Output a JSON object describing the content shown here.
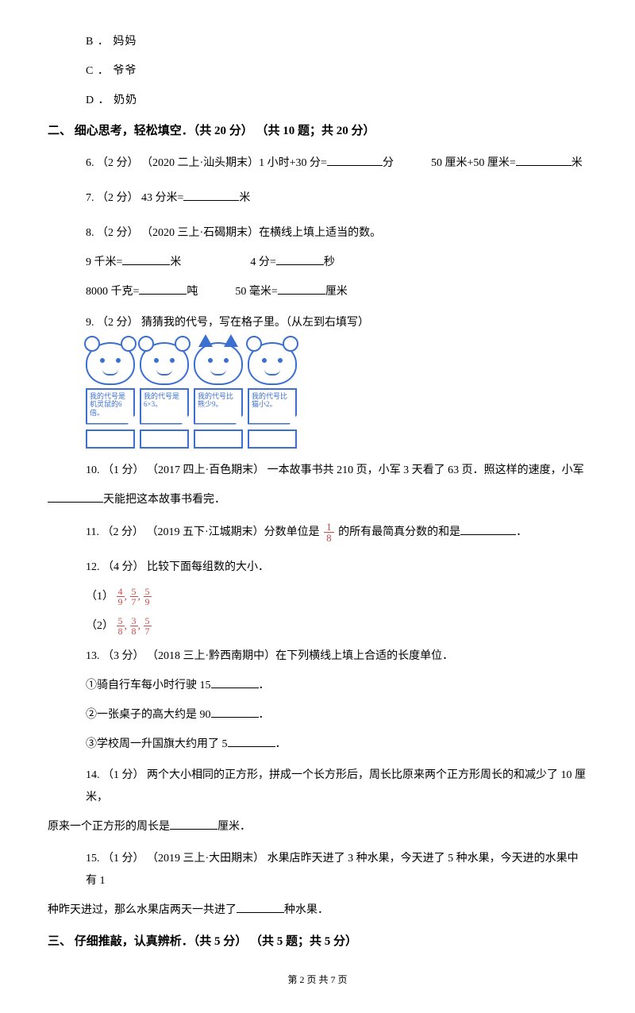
{
  "options": {
    "b": "B ． 妈妈",
    "c": "C ． 爷爷",
    "d": "D ． 奶奶"
  },
  "section2": {
    "heading": "二、 细心思考，轻松填空．（共 20 分） （共 10 题；共 20 分）"
  },
  "q6": {
    "prefix": "6. （2 分） （2020 二上·汕头期末）1 小时+30 分=",
    "unit1": "分",
    "mid": "50 厘米+50 厘米=",
    "unit2": "米"
  },
  "q7": {
    "prefix": "7. （2 分） 43 分米=",
    "unit": "米"
  },
  "q8": {
    "prefix": "8. （2 分） （2020 三上·石碣期末）在横线上填上适当的数。",
    "r1a": "9 千米=",
    "r1a_u": "米",
    "r1b": "4 分=",
    "r1b_u": "秒",
    "r2a": "8000 千克=",
    "r2a_u": "吨",
    "r2b": "50 毫米=",
    "r2b_u": "厘米"
  },
  "q9": {
    "prefix": "9. （2 分） 猜猜我的代号，写在格子里。（从左到右填写）",
    "cards": [
      "我的代号是机灵鼠的6倍。",
      "我的代号是6×3。",
      "我的代号比熊少9。",
      "我的代号比猫小2。"
    ]
  },
  "q10": {
    "line1": "10.  （1 分）  （2017 四上·百色期末）  一本故事书共 210 页，小军 3 天看了 63 页．照这样的速度，小军",
    "line2_suffix": "天能把这本故事书看完．"
  },
  "q11": {
    "prefix": "11. （2 分） （2019 五下·江城期末）分数单位是 ",
    "suffix": " 的所有最简真分数的和是",
    "end": "．",
    "frac_n": "1",
    "frac_d": "8"
  },
  "q12": {
    "prefix": "12. （4 分） 比较下面每组数的大小．",
    "p1": "（1）",
    "p2": "（2）",
    "f1_n": "4",
    "f1_d": "9",
    "f2_n": "5",
    "f2_d": "7",
    "f3_n": "5",
    "f3_d": "9",
    "g1_n": "5",
    "g1_d": "8",
    "g2_n": "3",
    "g2_d": "8",
    "g3_n": "5",
    "g3_d": "7"
  },
  "q13": {
    "prefix": "13. （3 分） （2018 三上·黔西南期中）在下列横线上填上合适的长度单位．",
    "s1": "①骑自行车每小时行驶 15",
    "e": "．",
    "s2": "②一张桌子的高大约是 90",
    "s3": "③学校周一升国旗大约用了 5"
  },
  "q14": {
    "line1": "14. （1 分） 两个大小相同的正方形，拼成一个长方形后，周长比原来两个正方形周长的和减少了 10 厘米，",
    "line2a": "原来一个正方形的周长是",
    "line2b": "厘米．"
  },
  "q15": {
    "line1": "15.  （1 分） （2019 三上·大田期末）  水果店昨天进了 3 种水果，今天进了 5 种水果，今天进的水果中有 1",
    "line2a": "种昨天进过，那么水果店两天一共进了",
    "line2b": "种水果．"
  },
  "section3": {
    "heading": "三、 仔细推敲，认真辨析．（共 5 分） （共 5 题；共 5 分）"
  },
  "footer": "第 2 页 共 7 页"
}
